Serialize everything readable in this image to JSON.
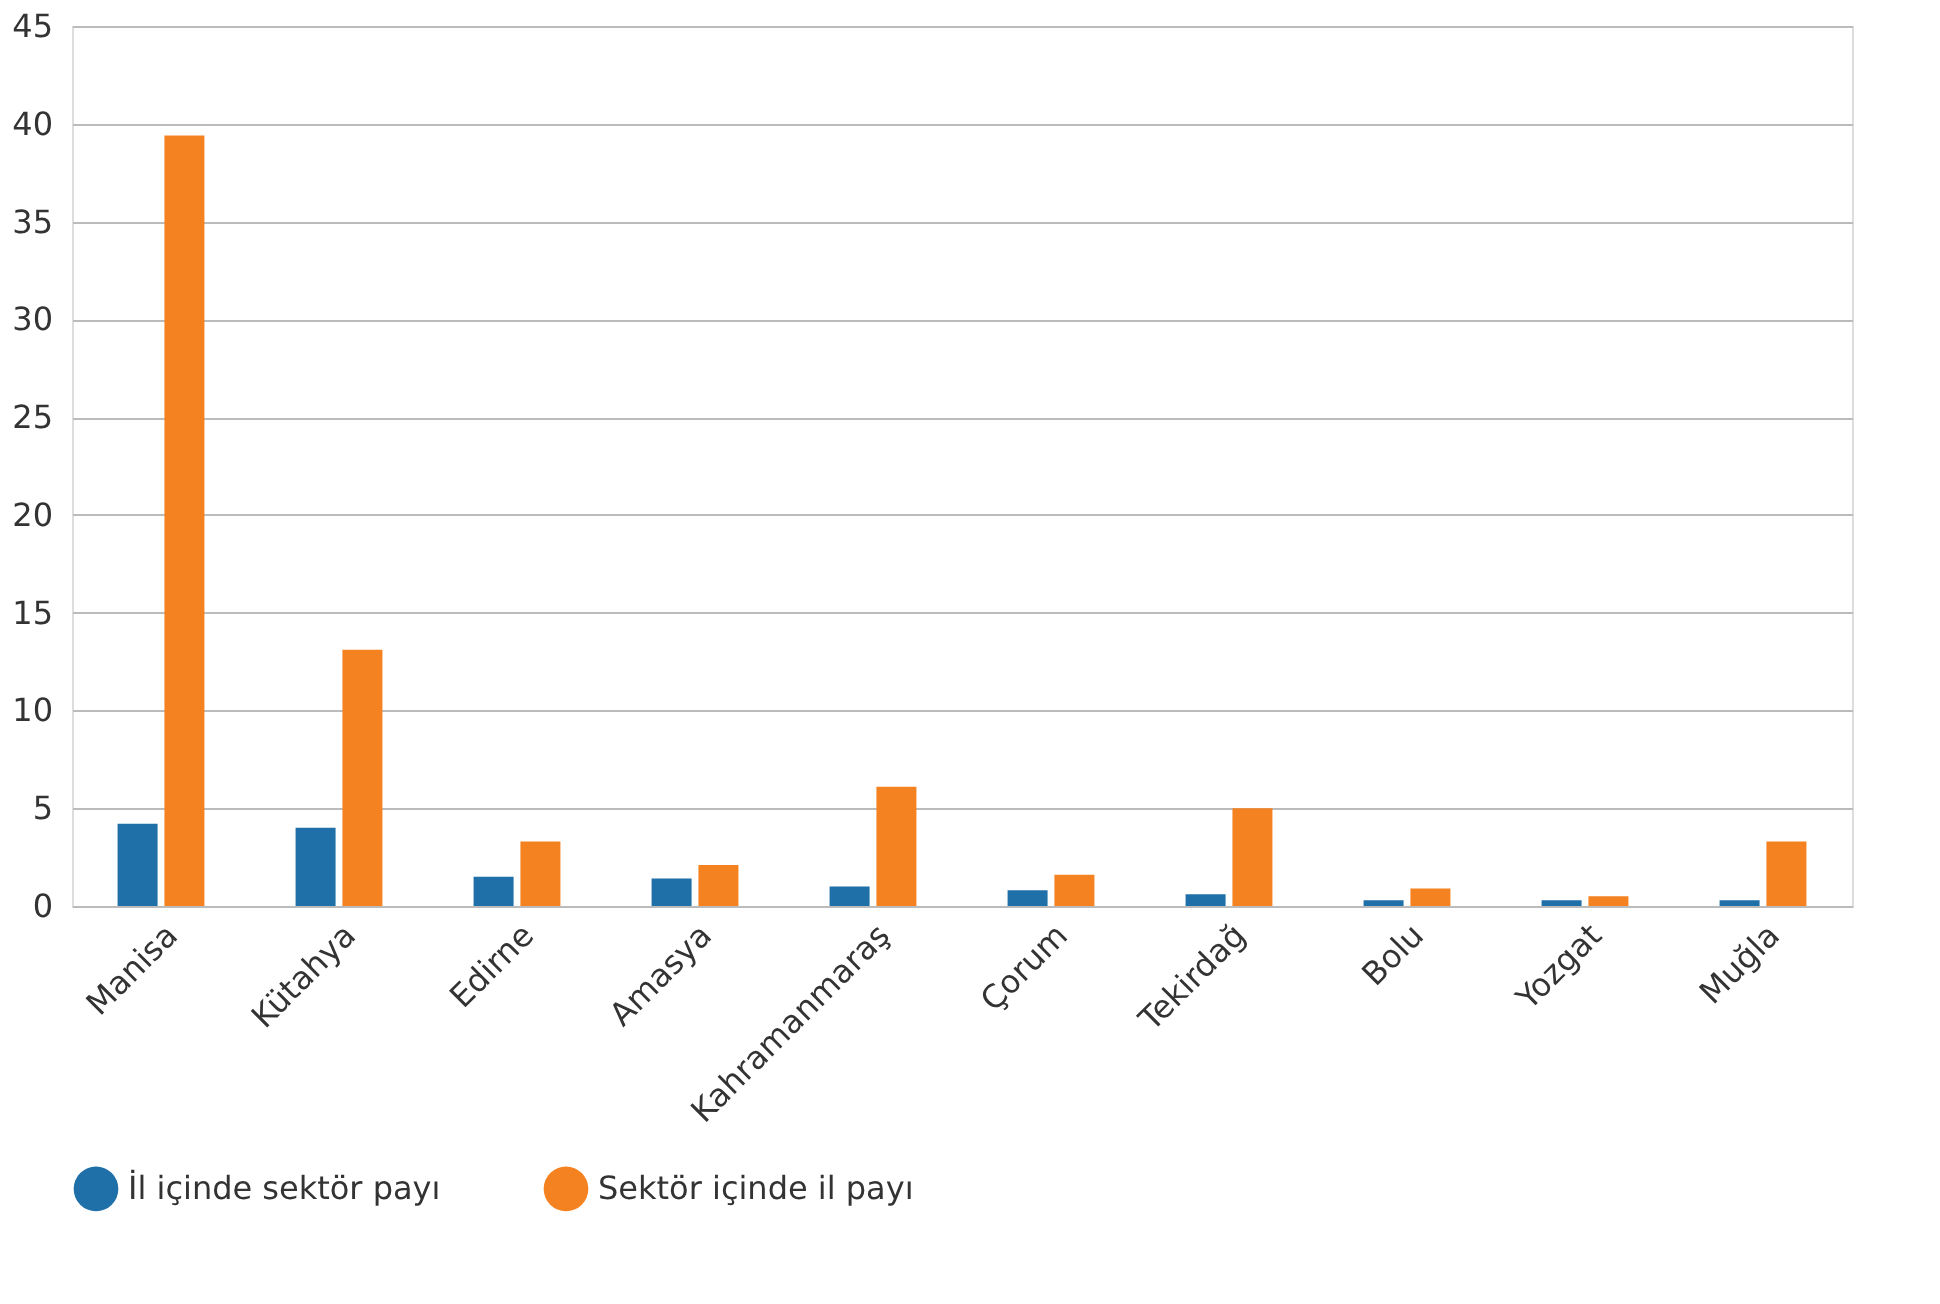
{
  "chart_data": {
    "type": "bar",
    "categories": [
      "Manisa",
      "Kütahya",
      "Edirne",
      "Amasya",
      "Kahramanmaraş",
      "Çorum",
      "Tekirdağ",
      "Bolu",
      "Yozgat",
      "Muğla"
    ],
    "series": [
      {
        "name": "İl içinde sektör payı",
        "color": "#1f6fa8",
        "values": [
          4.2,
          4.0,
          1.5,
          1.4,
          1.0,
          0.8,
          0.6,
          0.3,
          0.3,
          0.3
        ]
      },
      {
        "name": "Sektör içinde il payı",
        "color": "#f58220",
        "values": [
          39.4,
          13.1,
          3.3,
          2.1,
          6.1,
          1.6,
          5.0,
          0.9,
          0.5,
          3.3
        ]
      }
    ],
    "ylim": [
      0,
      45
    ],
    "yticks": [
      0,
      5,
      10,
      15,
      20,
      25,
      30,
      35,
      40,
      45
    ],
    "grid": "y",
    "legend": "bottom"
  }
}
